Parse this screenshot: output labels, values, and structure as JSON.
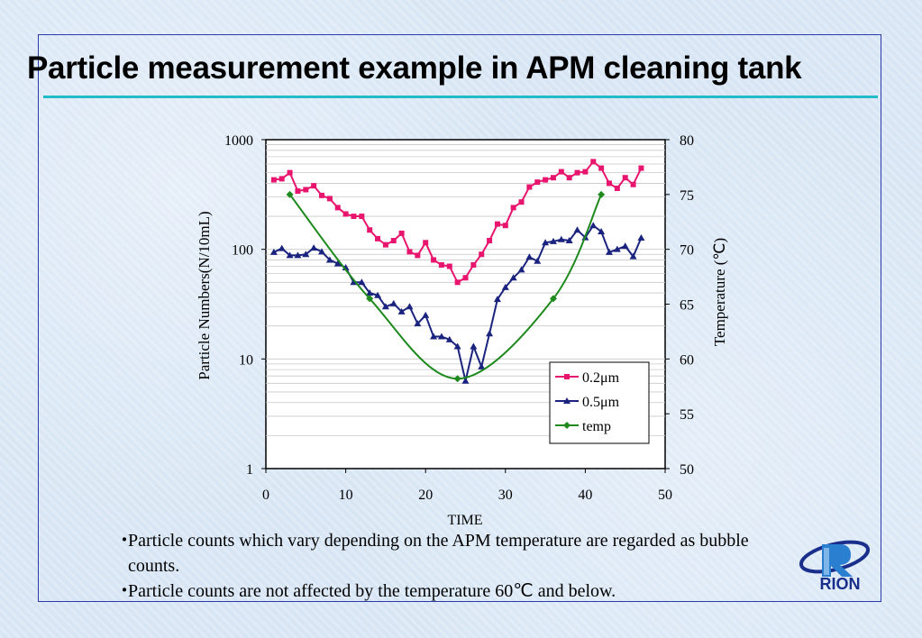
{
  "page": {
    "title": "Particle measurement example in APM cleaning tank",
    "bullets": [
      "Particle counts which vary depending on the APM temperature are regarded as bubble counts.",
      "Particle counts are not affected by the temperature 60℃ and below."
    ],
    "logo_text": "RION",
    "colors": {
      "title_rule": "#22bcc8",
      "frame": "#2a3aa8",
      "background": "#dce9f6"
    }
  },
  "chart_data": {
    "type": "line",
    "xlabel": "TIME",
    "ylabel": "Particle Numbers(N/10mL)",
    "y2label": "Temperature (℃)",
    "xlim": [
      0,
      50
    ],
    "ylim": [
      1,
      1000
    ],
    "yscale": "log",
    "y2lim": [
      50,
      80
    ],
    "x_ticks": [
      0,
      10,
      20,
      30,
      40,
      50
    ],
    "y_ticks": [
      1,
      10,
      100,
      1000
    ],
    "y_tick_labels": [
      "1",
      "10",
      "100",
      "1000"
    ],
    "y2_ticks": [
      50,
      55,
      60,
      65,
      70,
      75,
      80
    ],
    "grid": "horizontal",
    "legend": "bottom-right",
    "series": [
      {
        "name": "0.2μm",
        "axis": "left",
        "color": "#e8156e",
        "marker": "square",
        "x": [
          1,
          2,
          3,
          4,
          5,
          6,
          7,
          8,
          9,
          10,
          11,
          12,
          13,
          14,
          15,
          16,
          17,
          18,
          19,
          20,
          21,
          22,
          23,
          24,
          25,
          26,
          27,
          28,
          29,
          30,
          31,
          32,
          33,
          34,
          35,
          36,
          37,
          38,
          39,
          40,
          41,
          42,
          43,
          44,
          45,
          46,
          47
        ],
        "y": [
          430,
          440,
          500,
          340,
          350,
          380,
          310,
          290,
          240,
          210,
          200,
          200,
          150,
          125,
          110,
          120,
          140,
          95,
          88,
          115,
          80,
          72,
          70,
          50,
          55,
          72,
          90,
          120,
          170,
          165,
          240,
          270,
          370,
          410,
          430,
          450,
          510,
          450,
          500,
          510,
          630,
          550,
          400,
          360,
          450,
          390,
          550
        ]
      },
      {
        "name": "0.5μm",
        "axis": "left",
        "color": "#1a237e",
        "marker": "triangle",
        "x": [
          1,
          2,
          3,
          4,
          5,
          6,
          7,
          8,
          9,
          10,
          11,
          12,
          13,
          14,
          15,
          16,
          17,
          18,
          19,
          20,
          21,
          22,
          23,
          24,
          25,
          26,
          27,
          28,
          29,
          30,
          31,
          32,
          33,
          34,
          35,
          36,
          37,
          38,
          39,
          40,
          41,
          42,
          43,
          44,
          45,
          46,
          47
        ],
        "y": [
          94,
          102,
          88,
          88,
          90,
          103,
          95,
          80,
          74,
          68,
          50,
          50,
          40,
          38,
          30,
          32,
          27,
          30,
          21,
          25,
          16,
          16,
          15,
          13,
          6.3,
          13,
          8.5,
          17,
          35,
          45,
          55,
          65,
          85,
          78,
          115,
          118,
          123,
          120,
          150,
          128,
          165,
          145,
          94,
          100,
          107,
          86,
          127
        ]
      },
      {
        "name": "temp",
        "axis": "right",
        "color": "#1e8a1e",
        "marker": "diamond",
        "x": [
          3,
          13,
          24,
          36,
          42
        ],
        "y": [
          75,
          65.5,
          58.2,
          65.5,
          75
        ],
        "smooth": true
      }
    ]
  }
}
